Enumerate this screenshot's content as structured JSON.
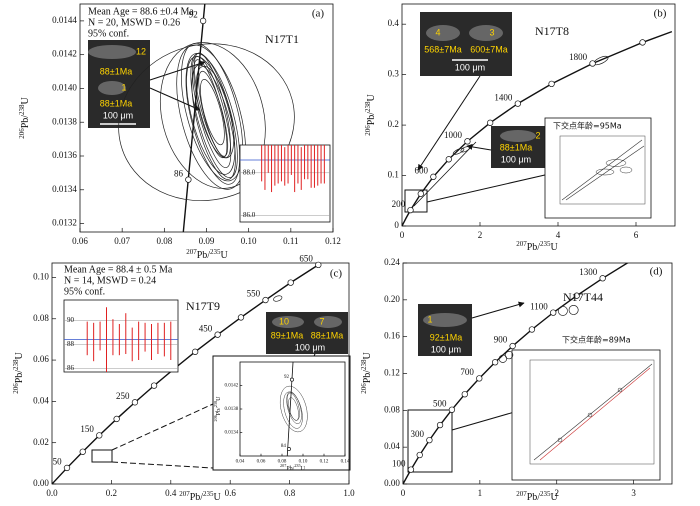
{
  "chart_data": [
    {
      "type": "concordia",
      "panel_label": "(a)",
      "sample": "N17T1",
      "annotation": [
        "Mean Age = 88.6 ±0.4 Ma",
        "N = 20, MSWD = 0.26",
        "95% conf."
      ],
      "x_label": [
        "207",
        "Pb/",
        "235",
        "U"
      ],
      "y_label": [
        "206",
        "Pb/",
        "238",
        "U"
      ],
      "xlim": [
        0.06,
        0.12
      ],
      "ylim": [
        0.01315,
        0.0145
      ],
      "xticks": [
        0.06,
        0.07,
        0.08,
        0.09,
        {
          "value": 0.1,
          "label": "0.10"
        },
        0.11,
        0.12
      ],
      "yticks": [
        0.0132,
        0.0134,
        0.0136,
        0.0138,
        {
          "value": 0.014,
          "label": "0.0140"
        },
        0.0142,
        0.0144
      ],
      "concordia": {
        "x": [
          0.0845,
          0.0896
        ],
        "y": [
          0.01315,
          0.0145
        ]
      },
      "age_markers": {
        "labels": [
          "92",
          "86"
        ],
        "x": [
          0.0892,
          0.0857
        ],
        "y": [
          0.0144,
          0.01346
        ]
      },
      "ellipse_tilt": -15,
      "ellipses": [
        {
          "x": 0.0912,
          "y": 0.01386,
          "sx": 0.003,
          "sy": 0.00034
        },
        {
          "x": 0.0918,
          "y": 0.01384,
          "sx": 0.004,
          "sy": 0.00038
        },
        {
          "x": 0.0909,
          "y": 0.01388,
          "sx": 0.0025,
          "sy": 0.0003
        },
        {
          "x": 0.0915,
          "y": 0.01382,
          "sx": 0.005,
          "sy": 0.0004
        },
        {
          "x": 0.092,
          "y": 0.01386,
          "sx": 0.0035,
          "sy": 0.00028
        },
        {
          "x": 0.091,
          "y": 0.01384,
          "sx": 0.0045,
          "sy": 0.00036
        },
        {
          "x": 0.0914,
          "y": 0.0139,
          "sx": 0.0028,
          "sy": 0.00032
        },
        {
          "x": 0.0917,
          "y": 0.0138,
          "sx": 0.0038,
          "sy": 0.00035
        },
        {
          "x": 0.0913,
          "y": 0.01386,
          "sx": 0.006,
          "sy": 0.00042
        },
        {
          "x": 0.0916,
          "y": 0.01385,
          "sx": 0.0022,
          "sy": 0.00026
        },
        {
          "x": 0.0911,
          "y": 0.01383,
          "sx": 0.007,
          "sy": 0.00044
        },
        {
          "x": 0.0914,
          "y": 0.01386,
          "sx": 0.002,
          "sy": 0.0002
        },
        {
          "x": 0.09,
          "y": 0.0138,
          "sx": 0.021,
          "sy": 0.00046
        },
        {
          "x": 0.0915,
          "y": 0.01384,
          "sx": 0.012,
          "sy": 0.00044
        }
      ],
      "images": [
        {
          "labels": [
            "12",
            "88±1Ma",
            "1",
            "88±1Ma",
            "100 μm"
          ]
        }
      ],
      "mean_inset": {
        "ylim": [
          85.7,
          89.3
        ],
        "yticks": [
          {
            "value": 88,
            "label": "88.0"
          },
          {
            "value": 86,
            "label": "86.0"
          }
        ],
        "mean": 88.6,
        "values": [
          88.6,
          88.4,
          88.9,
          88.2,
          88.7,
          88.5,
          88.8,
          88.3,
          88.6,
          88.9,
          88.4,
          88.7,
          88.2,
          88.6,
          88.8,
          88.5,
          88.3,
          88.7,
          88.6,
          88.5
        ],
        "errors": [
          1.0,
          1.2,
          0.9,
          1.1,
          1.3,
          1.0,
          1.2,
          0.9,
          1.1,
          1.0,
          1.3,
          1.2,
          1.0,
          0.9,
          1.1,
          1.2,
          1.0,
          1.3,
          1.1,
          1.0
        ]
      }
    },
    {
      "type": "concordia",
      "panel_label": "(b)",
      "sample": "N17T8",
      "x_label": [
        "207",
        "Pb/",
        "235",
        "U"
      ],
      "y_label": [
        "206",
        "Pb/",
        "238",
        "U"
      ],
      "xlim": [
        0,
        7
      ],
      "ylim": [
        0,
        0.44
      ],
      "xticks": [
        0,
        2,
        4,
        6
      ],
      "yticks": [
        0,
        0.1,
        0.2,
        0.3,
        0.4
      ],
      "concordia": {
        "x": [
          0,
          0.1035,
          0.2177,
          0.482,
          0.8037,
          1.1987,
          1.6774,
          2.2604,
          2.97,
          3.835,
          4.886,
          6.168,
          6.92
        ],
        "y": [
          0,
          0.0156,
          0.0315,
          0.064,
          0.0975,
          0.1322,
          0.1678,
          0.2045,
          0.2426,
          0.2817,
          0.3221,
          0.3638,
          0.3852
        ]
      },
      "age_markers": {
        "labels": [
          "200",
          null,
          "600",
          null,
          "1000",
          null,
          "1400",
          null,
          "1800",
          null
        ],
        "x": [
          0.2177,
          0.482,
          0.8037,
          1.1987,
          1.6774,
          2.2604,
          2.97,
          3.835,
          4.886,
          6.168
        ],
        "y": [
          0.0315,
          0.064,
          0.0975,
          0.1322,
          0.1678,
          0.2045,
          0.2426,
          0.2817,
          0.3221,
          0.3638
        ]
      },
      "ellipse_tilt": -25,
      "ellipses": [
        {
          "x": 5.1,
          "y": 0.328,
          "sx": 0.2,
          "sy": 0.006
        },
        {
          "x": 1.45,
          "y": 0.148,
          "sx": 0.15,
          "sy": 0.004
        },
        {
          "x": 1.62,
          "y": 0.152,
          "sx": 0.12,
          "sy": 0.004
        }
      ],
      "images": [
        {
          "labels": [
            "4",
            "568±7Ma",
            "3",
            "600±7Ma",
            "100 μm"
          ]
        },
        {
          "labels": [
            "2",
            "88±1Ma",
            "100 μm"
          ]
        }
      ],
      "zoom_inset": {
        "text": "下交点年龄=95Ma"
      }
    },
    {
      "type": "concordia",
      "panel_label": "(c)",
      "sample": "N17T9",
      "annotation": [
        "Mean Age = 88.4 ± 0.5 Ma",
        "N = 14, MSWD = 0.24",
        "95% conf."
      ],
      "x_label": [
        "207",
        "Pb/",
        "235",
        "U"
      ],
      "y_label": [
        "206",
        "Pb/",
        "238",
        "U"
      ],
      "xlim": [
        0,
        1
      ],
      "ylim": [
        0,
        0.107
      ],
      "xticks": [
        {
          "value": 0,
          "label": "0.0"
        },
        0.2,
        0.4,
        0.6,
        0.8,
        {
          "value": 1,
          "label": "1.0"
        }
      ],
      "yticks": [
        {
          "value": 0,
          "label": "0.00"
        },
        0.02,
        0.04,
        0.06,
        0.08,
        {
          "value": 0.1,
          "label": "0.10"
        }
      ],
      "concordia": {
        "x": [
          0,
          0.05048,
          0.1035,
          0.1592,
          0.2177,
          0.2792,
          0.3437,
          0.4116,
          0.482,
          0.5577,
          0.6363,
          0.7189,
          0.8037,
          0.8967
        ],
        "y": [
          0,
          0.007786,
          0.01563,
          0.02354,
          0.0315,
          0.03954,
          0.04764,
          0.0558,
          0.064,
          0.0723,
          0.08065,
          0.08906,
          0.0975,
          0.10609
        ]
      },
      "age_markers": {
        "labels": [
          "50",
          null,
          "150",
          null,
          "250",
          null,
          "350",
          null,
          "450",
          null,
          "550",
          null,
          "650"
        ],
        "x": [
          0.05048,
          0.1035,
          0.1592,
          0.2177,
          0.2792,
          0.3437,
          0.4116,
          0.482,
          0.5577,
          0.6363,
          0.7189,
          0.8037,
          0.8967
        ],
        "y": [
          0.007786,
          0.01563,
          0.02354,
          0.0315,
          0.03954,
          0.04764,
          0.0558,
          0.064,
          0.0723,
          0.08065,
          0.08906,
          0.0975,
          0.10609
        ]
      },
      "ellipse_tilt": -20,
      "ellipses": [
        {
          "x": 0.76,
          "y": 0.0898,
          "sx": 0.015,
          "sy": 0.0012
        }
      ],
      "images": [
        {
          "labels": [
            "10",
            "89±1Ma",
            "7",
            "88±1Ma",
            "100 μm"
          ]
        }
      ],
      "mean_inset": {
        "ylim": [
          85.7,
          91.7
        ],
        "yticks": [
          90,
          88,
          86
        ],
        "mean": 88.4,
        "values": [
          88.5,
          88.2,
          88.7,
          88.1,
          88.6,
          88.4,
          88.9,
          88.0,
          88.3,
          88.6,
          88.2,
          88.5,
          88.4,
          88.3
        ],
        "errors": [
          1.4,
          1.6,
          1.2,
          3.0,
          1.5,
          1.3,
          1.7,
          1.4,
          1.6,
          1.2,
          1.5,
          1.3,
          1.4,
          1.6
        ]
      },
      "zoom_inset": {
        "x_label": [
          "207",
          "Pb/",
          "235",
          "U"
        ],
        "y_label": [
          "206",
          "Pb/",
          "238",
          "U"
        ],
        "xlim": [
          0.04,
          0.14
        ],
        "ylim": [
          0.013,
          0.0146
        ],
        "xticks": [
          0.04,
          0.06,
          0.08,
          {
            "value": 0.1,
            "label": "0.10"
          },
          0.12,
          0.14
        ],
        "yticks": [
          0.0134,
          0.0138,
          0.0142
        ],
        "concordia": {
          "x": [
            0.085,
            0.0905
          ],
          "y": [
            0.013,
            0.0146
          ]
        },
        "age_markers": {
          "labels": [
            "92",
            "84"
          ],
          "x": [
            0.0895,
            0.0866
          ],
          "y": [
            0.0143,
            0.01312
          ]
        },
        "ellipse_tilt": -15,
        "ellipses": [
          {
            "x": 0.091,
            "y": 0.0138,
            "sx": 0.004,
            "sy": 0.0002
          },
          {
            "x": 0.0915,
            "y": 0.01382,
            "sx": 0.006,
            "sy": 0.00028
          },
          {
            "x": 0.0905,
            "y": 0.01378,
            "sx": 0.008,
            "sy": 0.00032
          },
          {
            "x": 0.0912,
            "y": 0.0138,
            "sx": 0.012,
            "sy": 0.0004
          },
          {
            "x": 0.0908,
            "y": 0.01384,
            "sx": 0.005,
            "sy": 0.00024
          }
        ]
      }
    },
    {
      "type": "concordia",
      "panel_label": "(d)",
      "sample": "N17T44",
      "x_label": [
        "207",
        "Pb/",
        "235",
        "U"
      ],
      "y_label": [
        "206",
        "Pb/",
        "238",
        "U"
      ],
      "xlim": [
        0,
        3.5
      ],
      "ylim": [
        0,
        0.24
      ],
      "xticks": [
        0,
        1,
        2,
        3
      ],
      "yticks": [
        {
          "value": 0,
          "label": "0.00"
        },
        0.04,
        0.08,
        0.12,
        0.16,
        {
          "value": 0.2,
          "label": "0.20"
        },
        0.24
      ],
      "concordia": {
        "x": [
          0,
          0.1035,
          0.2177,
          0.3437,
          0.482,
          0.6363,
          0.8037,
          0.9925,
          1.1987,
          1.4263,
          1.6774,
          1.9546,
          2.2604,
          2.5977,
          2.97
        ],
        "y": [
          0,
          0.01563,
          0.0315,
          0.04764,
          0.064,
          0.08065,
          0.0975,
          0.1147,
          0.1322,
          0.1498,
          0.1678,
          0.1861,
          0.2045,
          0.2234,
          0.2426
        ]
      },
      "age_markers": {
        "labels": [
          "100",
          null,
          "300",
          null,
          "500",
          null,
          "700",
          null,
          "900",
          null,
          "1100",
          null,
          "1300"
        ],
        "x": [
          0.1035,
          0.2177,
          0.3437,
          0.482,
          0.6363,
          0.8037,
          0.9925,
          1.1987,
          1.4263,
          1.6774,
          1.9546,
          2.2604,
          2.5977
        ],
        "y": [
          0.01563,
          0.0315,
          0.04764,
          0.064,
          0.08065,
          0.0975,
          0.1147,
          0.1322,
          0.1498,
          0.1678,
          0.1861,
          0.2045,
          0.2234
        ]
      },
      "ellipse_tilt": -30,
      "ellipses": [
        {
          "x": 2.08,
          "y": 0.188,
          "sx": 0.06,
          "sy": 0.005
        },
        {
          "x": 2.22,
          "y": 0.189,
          "sx": 0.06,
          "sy": 0.005
        },
        {
          "x": 1.3,
          "y": 0.136,
          "sx": 0.05,
          "sy": 0.004
        },
        {
          "x": 1.38,
          "y": 0.14,
          "sx": 0.05,
          "sy": 0.004
        }
      ],
      "images": [
        {
          "labels": [
            "1",
            "92±1Ma",
            "100 μm"
          ]
        }
      ],
      "zoom_inset": {
        "text": "下交点年龄=89Ma"
      }
    }
  ]
}
